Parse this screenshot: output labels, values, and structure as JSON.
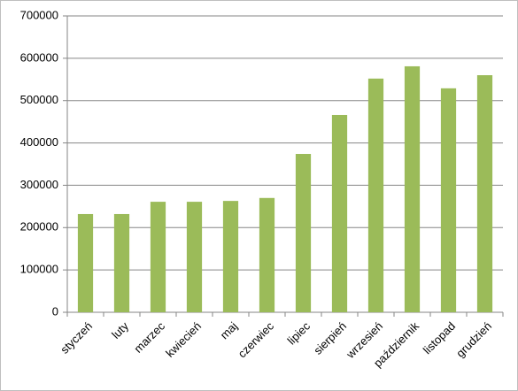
{
  "chart_data": {
    "type": "bar",
    "categories": [
      "styczeń",
      "luty",
      "marzec",
      "kwiecień",
      "maj",
      "czerwiec",
      "lipiec",
      "sierpień",
      "wrzesień",
      "październik",
      "listopad",
      "grudzień"
    ],
    "values": [
      232000,
      232000,
      261000,
      261000,
      263000,
      270000,
      374000,
      466000,
      552000,
      581000,
      529000,
      560000
    ],
    "color": "#9bbb59",
    "ylim": [
      0,
      700000
    ],
    "yticks": [
      0,
      100000,
      200000,
      300000,
      400000,
      500000,
      600000,
      700000
    ],
    "grid": true
  }
}
